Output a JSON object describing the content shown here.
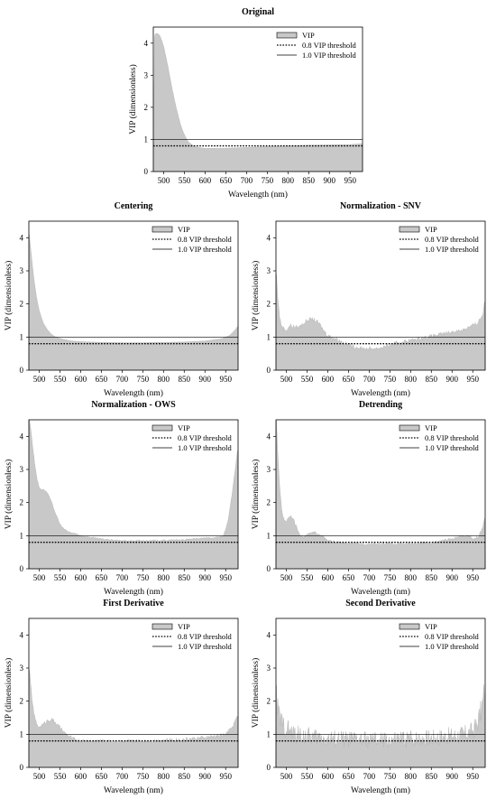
{
  "common": {
    "xlabel": "Wavelength (nm)",
    "ylabel": "VIP (dimensionless)",
    "legend": [
      "VIP",
      "0.8 VIP threshold",
      "1.0 VIP threshold"
    ],
    "xticks": [
      500,
      550,
      600,
      650,
      700,
      750,
      800,
      850,
      900,
      950
    ],
    "yticks": [
      0,
      1,
      2,
      3,
      4
    ],
    "xlim": [
      475,
      980
    ],
    "ylim": [
      0,
      4.5
    ],
    "thresholds": [
      0.8,
      1.0
    ],
    "fill_color": "#c8c8c8",
    "legend_position": "top-right"
  },
  "chart_data": [
    {
      "type": "area",
      "title": "Original",
      "xlabel": "Wavelength (nm)",
      "ylabel": "VIP (dimensionless)",
      "xlim": [
        475,
        980
      ],
      "ylim": [
        0,
        4.5
      ],
      "series": [
        {
          "name": "VIP",
          "x": [
            478,
            480,
            485,
            490,
            495,
            500,
            505,
            510,
            515,
            520,
            525,
            530,
            535,
            540,
            545,
            550,
            555,
            560,
            570,
            580,
            600,
            650,
            700,
            750,
            800,
            850,
            900,
            950,
            980
          ],
          "y": [
            4.2,
            4.3,
            4.3,
            4.25,
            4.1,
            3.9,
            3.6,
            3.3,
            2.95,
            2.6,
            2.3,
            2.0,
            1.75,
            1.5,
            1.3,
            1.15,
            1.02,
            0.92,
            0.82,
            0.76,
            0.72,
            0.73,
            0.75,
            0.78,
            0.8,
            0.82,
            0.83,
            0.84,
            0.87
          ]
        }
      ],
      "thresholds": [
        {
          "name": "0.8 VIP threshold",
          "value": 0.8
        },
        {
          "name": "1.0 VIP threshold",
          "value": 1.0
        }
      ]
    },
    {
      "type": "area",
      "title": "Centering",
      "xlabel": "Wavelength (nm)",
      "ylabel": "VIP (dimensionless)",
      "xlim": [
        475,
        980
      ],
      "ylim": [
        0,
        4.5
      ],
      "series": [
        {
          "name": "VIP",
          "x": [
            476,
            480,
            485,
            490,
            495,
            500,
            505,
            510,
            520,
            530,
            540,
            550,
            560,
            570,
            580,
            600,
            650,
            700,
            750,
            800,
            850,
            900,
            940,
            960,
            975,
            980
          ],
          "y": [
            4.1,
            3.6,
            3.0,
            2.5,
            2.1,
            1.8,
            1.6,
            1.42,
            1.22,
            1.08,
            1.0,
            0.96,
            0.93,
            0.9,
            0.88,
            0.86,
            0.84,
            0.83,
            0.83,
            0.84,
            0.85,
            0.88,
            0.95,
            1.05,
            1.25,
            1.35
          ]
        }
      ],
      "thresholds": [
        {
          "name": "0.8 VIP threshold",
          "value": 0.8
        },
        {
          "name": "1.0 VIP threshold",
          "value": 1.0
        }
      ]
    },
    {
      "type": "area",
      "title": "Normalization - SNV",
      "xlabel": "Wavelength (nm)",
      "ylabel": "VIP (dimensionless)",
      "xlim": [
        475,
        980
      ],
      "ylim": [
        0,
        4.5
      ],
      "series": [
        {
          "name": "VIP",
          "x": [
            476,
            480,
            485,
            490,
            500,
            510,
            520,
            530,
            540,
            550,
            560,
            570,
            580,
            590,
            600,
            620,
            640,
            660,
            680,
            700,
            720,
            740,
            760,
            780,
            800,
            820,
            840,
            860,
            880,
            900,
            920,
            940,
            960,
            975,
            980
          ],
          "y": [
            2.9,
            2.1,
            1.5,
            1.3,
            1.2,
            1.35,
            1.3,
            1.3,
            1.4,
            1.5,
            1.55,
            1.5,
            1.4,
            1.2,
            1.05,
            0.95,
            0.82,
            0.72,
            0.66,
            0.65,
            0.66,
            0.72,
            0.8,
            0.86,
            0.9,
            0.95,
            1.0,
            1.05,
            1.1,
            1.15,
            1.2,
            1.3,
            1.4,
            1.7,
            2.3
          ]
        }
      ],
      "thresholds": [
        {
          "name": "0.8 VIP threshold",
          "value": 0.8
        },
        {
          "name": "1.0 VIP threshold",
          "value": 1.0
        }
      ]
    },
    {
      "type": "area",
      "title": "Normalization - OWS",
      "xlabel": "Wavelength (nm)",
      "ylabel": "VIP (dimensionless)",
      "xlim": [
        475,
        980
      ],
      "ylim": [
        0,
        4.5
      ],
      "series": [
        {
          "name": "VIP",
          "x": [
            476,
            480,
            485,
            490,
            495,
            500,
            505,
            510,
            515,
            520,
            530,
            540,
            550,
            560,
            570,
            580,
            590,
            600,
            650,
            700,
            750,
            800,
            850,
            900,
            930,
            945,
            955,
            965,
            975,
            980
          ],
          "y": [
            4.5,
            4.2,
            3.6,
            3.1,
            2.7,
            2.45,
            2.4,
            2.4,
            2.35,
            2.3,
            2.0,
            1.65,
            1.35,
            1.2,
            1.12,
            1.08,
            1.05,
            1.0,
            0.9,
            0.85,
            0.85,
            0.86,
            0.88,
            0.93,
            0.95,
            1.0,
            1.4,
            2.2,
            3.2,
            3.7
          ]
        }
      ],
      "thresholds": [
        {
          "name": "0.8 VIP threshold",
          "value": 0.8
        },
        {
          "name": "1.0 VIP threshold",
          "value": 1.0
        }
      ]
    },
    {
      "type": "area",
      "title": "Detrending",
      "xlabel": "Wavelength (nm)",
      "ylabel": "VIP (dimensionless)",
      "xlim": [
        475,
        980
      ],
      "ylim": [
        0,
        4.5
      ],
      "series": [
        {
          "name": "VIP",
          "x": [
            476,
            480,
            485,
            490,
            495,
            500,
            505,
            510,
            515,
            520,
            525,
            530,
            540,
            550,
            560,
            570,
            580,
            590,
            600,
            620,
            650,
            700,
            750,
            800,
            850,
            900,
            920,
            940,
            955,
            965,
            975,
            980
          ],
          "y": [
            4.5,
            3.3,
            2.3,
            1.7,
            1.45,
            1.45,
            1.55,
            1.6,
            1.55,
            1.4,
            1.25,
            1.1,
            0.95,
            1.02,
            1.08,
            1.1,
            1.05,
            0.95,
            0.85,
            0.8,
            0.76,
            0.75,
            0.76,
            0.76,
            0.78,
            0.9,
            0.98,
            1.0,
            0.9,
            1.0,
            1.3,
            1.6
          ]
        }
      ],
      "thresholds": [
        {
          "name": "0.8 VIP threshold",
          "value": 0.8
        },
        {
          "name": "1.0 VIP threshold",
          "value": 1.0
        }
      ]
    },
    {
      "type": "area",
      "title": "First Derivative",
      "xlabel": "Wavelength (nm)",
      "ylabel": "VIP (dimensionless)",
      "xlim": [
        475,
        980
      ],
      "ylim": [
        0,
        4.5
      ],
      "series": [
        {
          "name": "VIP",
          "x": [
            476,
            480,
            485,
            490,
            495,
            500,
            505,
            510,
            520,
            530,
            540,
            550,
            560,
            570,
            580,
            590,
            600,
            650,
            700,
            750,
            800,
            850,
            900,
            930,
            950,
            965,
            975,
            980
          ],
          "y": [
            3.0,
            2.4,
            1.8,
            1.45,
            1.3,
            1.2,
            1.25,
            1.3,
            1.42,
            1.45,
            1.35,
            1.2,
            1.05,
            0.95,
            0.88,
            0.83,
            0.8,
            0.8,
            0.78,
            0.8,
            0.82,
            0.85,
            0.9,
            0.95,
            1.0,
            1.2,
            1.45,
            1.6
          ]
        }
      ],
      "thresholds": [
        {
          "name": "0.8 VIP threshold",
          "value": 0.8
        },
        {
          "name": "1.0 VIP threshold",
          "value": 1.0
        }
      ]
    },
    {
      "type": "area",
      "title": "Second Derivative",
      "xlabel": "Wavelength (nm)",
      "ylabel": "VIP (dimensionless)",
      "xlim": [
        475,
        980
      ],
      "ylim": [
        0,
        4.5
      ],
      "series": [
        {
          "name": "VIP",
          "x": [
            476,
            480,
            490,
            500,
            510,
            520,
            550,
            600,
            650,
            700,
            750,
            800,
            850,
            900,
            930,
            950,
            960,
            970,
            975,
            980
          ],
          "y": [
            2.1,
            1.7,
            1.3,
            1.2,
            1.1,
            1.0,
            0.95,
            0.88,
            0.85,
            0.82,
            0.82,
            0.88,
            0.9,
            0.95,
            1.0,
            1.1,
            1.3,
            1.7,
            2.0,
            2.6
          ]
        }
      ],
      "thresholds": [
        {
          "name": "0.8 VIP threshold",
          "value": 0.8
        },
        {
          "name": "1.0 VIP threshold",
          "value": 1.0
        }
      ]
    }
  ]
}
